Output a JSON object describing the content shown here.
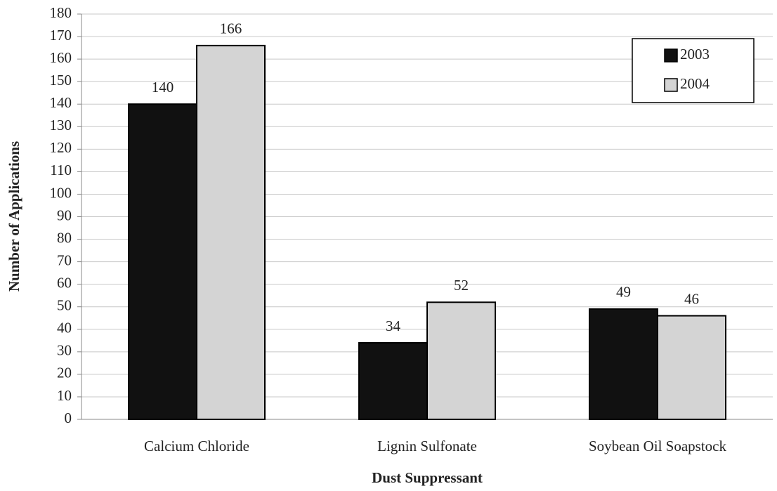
{
  "chart_data": {
    "type": "bar",
    "x_label": "Dust Suppressant",
    "y_label": "Number of Applications",
    "categories": [
      "Calcium Chloride",
      "Lignin Sulfonate",
      "Soybean Oil Soapstock"
    ],
    "series": [
      {
        "name": "2003",
        "color": "#111111",
        "values": [
          140,
          34,
          49
        ]
      },
      {
        "name": "2004",
        "color": "#d4d4d4",
        "values": [
          166,
          52,
          46
        ]
      }
    ],
    "ylim": [
      0,
      180
    ],
    "yticks": [
      0,
      10,
      20,
      30,
      40,
      50,
      60,
      70,
      80,
      90,
      100,
      110,
      120,
      130,
      140,
      150,
      160,
      170,
      180
    ],
    "grid": true,
    "legend": "upper right"
  }
}
